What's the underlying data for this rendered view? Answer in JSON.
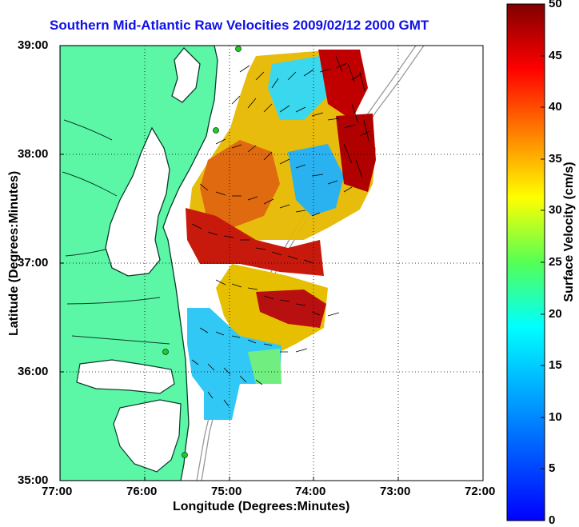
{
  "title": "Southern Mid-Atlantic Raw Velocities 2009/02/12 2000 GMT",
  "map": {
    "x_label": "Longitude (Degrees:Minutes)",
    "y_label": "Latitude (Degrees:Minutes)",
    "x_ticks": [
      "77:00",
      "76:00",
      "75:00",
      "74:00",
      "73:00",
      "72:00"
    ],
    "y_ticks": [
      "39:00",
      "38:00",
      "37:00",
      "36:00",
      "35:00"
    ],
    "grid": "dotted",
    "land_color": "#5cf7a6",
    "coast_color": "#0a3b2a",
    "station_color": "#22cc22"
  },
  "colorbar": {
    "label": "Surface Velocity (cm/s)",
    "ticks": [
      "50",
      "45",
      "40",
      "35",
      "30",
      "25",
      "20",
      "15",
      "10",
      "5",
      "0"
    ],
    "range": [
      0,
      50
    ],
    "colormap": "jet"
  }
}
